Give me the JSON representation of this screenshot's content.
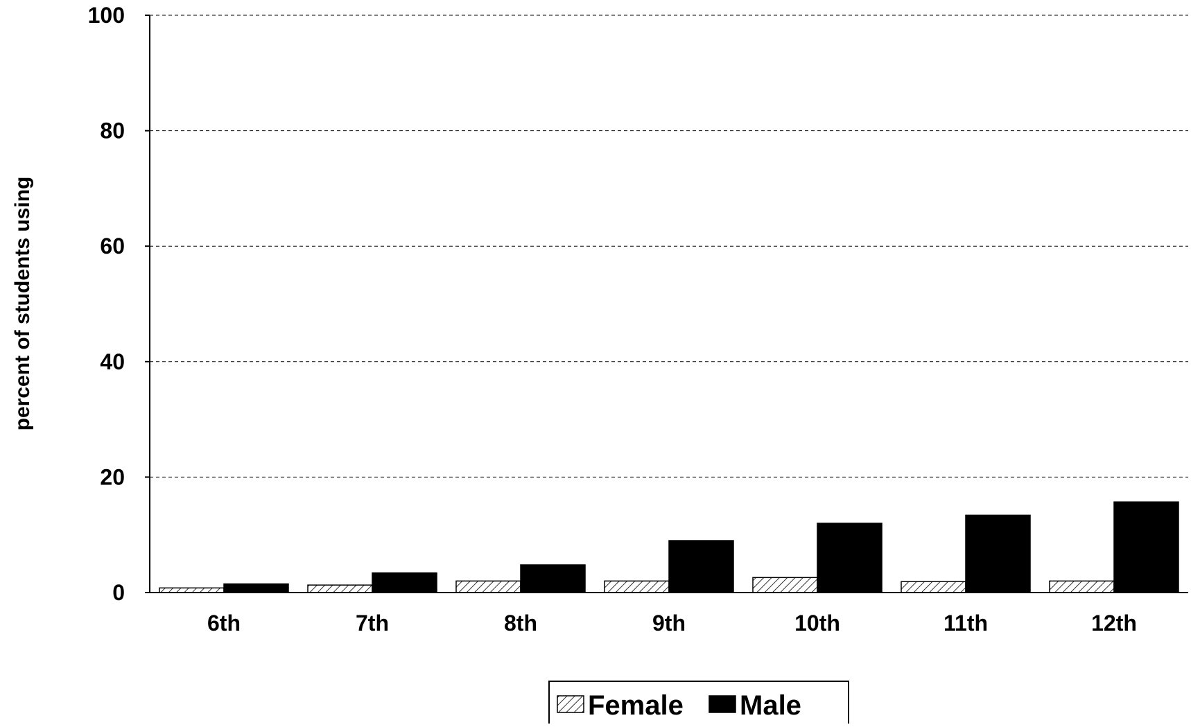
{
  "chart_data": {
    "type": "bar",
    "title": "",
    "xlabel": "",
    "ylabel": "percent of students using",
    "ylim": [
      0,
      100
    ],
    "yticks": [
      "0",
      "20",
      "40",
      "60",
      "80",
      "100"
    ],
    "grid": true,
    "legend_position": "bottom-center",
    "categories": [
      "6th",
      "7th",
      "8th",
      "9th",
      "10th",
      "11th",
      "12th"
    ],
    "series": [
      {
        "name": "Female",
        "pattern": "hatched",
        "color": "#ffffff",
        "values": [
          0.8,
          1.3,
          2.0,
          2.0,
          2.6,
          1.9,
          2.0
        ]
      },
      {
        "name": "Male",
        "pattern": "solid",
        "color": "#000000",
        "values": [
          1.5,
          3.4,
          4.8,
          9.0,
          12.0,
          13.4,
          15.7
        ]
      }
    ]
  }
}
